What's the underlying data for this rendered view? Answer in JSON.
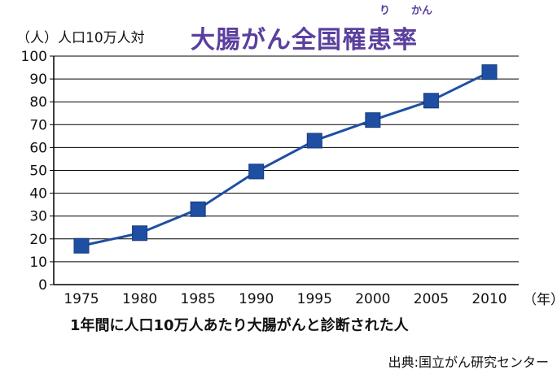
{
  "unit_label": "（人）人口10万人対",
  "title": "大腸がん全国罹患率",
  "ruby": {
    "ri": "り",
    "kan": "かん"
  },
  "x_unit": "（年）",
  "caption": "1年間に人口10万人あたり大腸がんと診断された人",
  "source": "出典:国立がん研究センター",
  "colors": {
    "line": "#1f4fa3",
    "marker": "#1f4fa3",
    "title": "#5b3f9e",
    "grid": "#000000"
  },
  "chart_data": {
    "type": "line",
    "x": [
      1975,
      1980,
      1985,
      1990,
      1995,
      2000,
      2005,
      2010
    ],
    "values": [
      17,
      22.5,
      33,
      49.5,
      63,
      72,
      80.5,
      93
    ],
    "ylim": [
      0,
      100
    ],
    "yticks": [
      0,
      10,
      20,
      30,
      40,
      50,
      60,
      70,
      80,
      90,
      100
    ],
    "xticks": [
      "1975",
      "1980",
      "1985",
      "1990",
      "1995",
      "2000",
      "2005",
      "2010"
    ],
    "grid": true,
    "marker": "square"
  }
}
